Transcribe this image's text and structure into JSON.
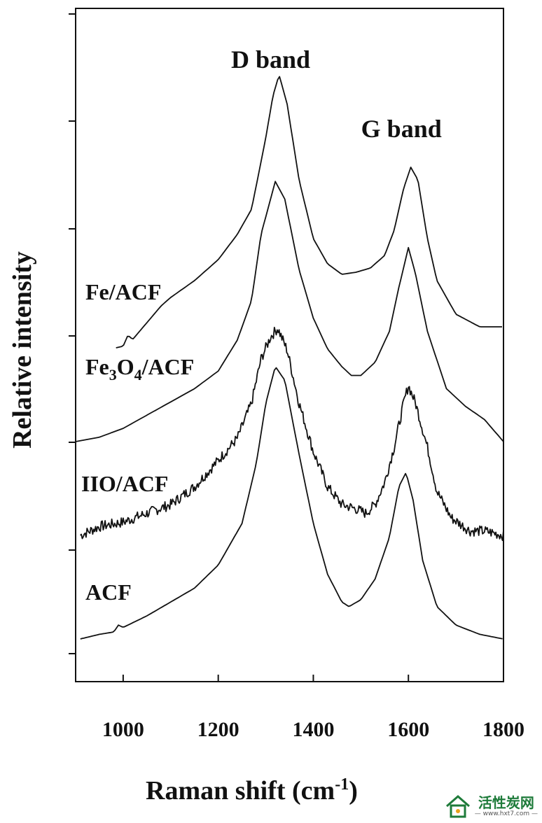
{
  "chart_data": {
    "type": "line",
    "xlabel": "Raman shift (cm",
    "xlabel_sup": "-1",
    "xlabel_close": ")",
    "ylabel": "Relative intensity",
    "xlim": [
      900,
      1800
    ],
    "xticks": [
      1000,
      1200,
      1400,
      1600,
      1800
    ],
    "xtick_labels": [
      "1000",
      "1200",
      "1400",
      "1600",
      "1800"
    ],
    "ylim": [
      0,
      1
    ],
    "yticks_labeled": false,
    "grid": false,
    "annotations": [
      {
        "text": "D band",
        "x": 1325
      },
      {
        "text": "G band",
        "x": 1600
      }
    ],
    "series": [
      {
        "name": "Fe/ACF",
        "label_parts": [
          "Fe/ACF"
        ],
        "noise": 0,
        "points": [
          [
            985,
            0.0
          ],
          [
            1000,
            0.004
          ],
          [
            1010,
            0.03
          ],
          [
            1020,
            0.02
          ],
          [
            1050,
            0.06
          ],
          [
            1080,
            0.1
          ],
          [
            1100,
            0.12
          ],
          [
            1150,
            0.16
          ],
          [
            1200,
            0.21
          ],
          [
            1240,
            0.27
          ],
          [
            1270,
            0.33
          ],
          [
            1300,
            0.5
          ],
          [
            1315,
            0.6
          ],
          [
            1328,
            0.65
          ],
          [
            1345,
            0.58
          ],
          [
            1370,
            0.4
          ],
          [
            1400,
            0.26
          ],
          [
            1430,
            0.2
          ],
          [
            1460,
            0.175
          ],
          [
            1490,
            0.18
          ],
          [
            1520,
            0.19
          ],
          [
            1550,
            0.22
          ],
          [
            1570,
            0.28
          ],
          [
            1590,
            0.38
          ],
          [
            1605,
            0.43
          ],
          [
            1620,
            0.4
          ],
          [
            1640,
            0.26
          ],
          [
            1660,
            0.16
          ],
          [
            1700,
            0.08
          ],
          [
            1750,
            0.05
          ],
          [
            1800,
            0.05
          ]
        ]
      },
      {
        "name": "Fe3O4/ACF",
        "label_parts": [
          "Fe",
          "3",
          "O",
          "4",
          "/ACF"
        ],
        "noise": 0,
        "points": [
          [
            900,
            0.0
          ],
          [
            950,
            0.01
          ],
          [
            1000,
            0.03
          ],
          [
            1050,
            0.06
          ],
          [
            1100,
            0.09
          ],
          [
            1150,
            0.12
          ],
          [
            1200,
            0.16
          ],
          [
            1240,
            0.23
          ],
          [
            1270,
            0.32
          ],
          [
            1290,
            0.47
          ],
          [
            1305,
            0.53
          ],
          [
            1320,
            0.59
          ],
          [
            1340,
            0.55
          ],
          [
            1370,
            0.39
          ],
          [
            1400,
            0.28
          ],
          [
            1430,
            0.21
          ],
          [
            1460,
            0.17
          ],
          [
            1480,
            0.15
          ],
          [
            1500,
            0.15
          ],
          [
            1530,
            0.18
          ],
          [
            1560,
            0.25
          ],
          [
            1580,
            0.35
          ],
          [
            1600,
            0.44
          ],
          [
            1615,
            0.38
          ],
          [
            1640,
            0.25
          ],
          [
            1680,
            0.12
          ],
          [
            1720,
            0.08
          ],
          [
            1760,
            0.05
          ],
          [
            1800,
            0.0
          ]
        ]
      },
      {
        "name": "IIO/ACF",
        "label_parts": [
          "IIO/ACF"
        ],
        "noise": 0.012,
        "points": [
          [
            910,
            0.0
          ],
          [
            950,
            0.02
          ],
          [
            1000,
            0.03
          ],
          [
            1050,
            0.05
          ],
          [
            1100,
            0.07
          ],
          [
            1150,
            0.11
          ],
          [
            1200,
            0.17
          ],
          [
            1240,
            0.22
          ],
          [
            1270,
            0.3
          ],
          [
            1290,
            0.4
          ],
          [
            1310,
            0.45
          ],
          [
            1325,
            0.47
          ],
          [
            1345,
            0.42
          ],
          [
            1370,
            0.3
          ],
          [
            1400,
            0.19
          ],
          [
            1430,
            0.11
          ],
          [
            1460,
            0.07
          ],
          [
            1490,
            0.06
          ],
          [
            1510,
            0.05
          ],
          [
            1530,
            0.07
          ],
          [
            1550,
            0.12
          ],
          [
            1570,
            0.2
          ],
          [
            1590,
            0.3
          ],
          [
            1600,
            0.34
          ],
          [
            1615,
            0.3
          ],
          [
            1640,
            0.2
          ],
          [
            1660,
            0.1
          ],
          [
            1690,
            0.04
          ],
          [
            1730,
            0.01
          ],
          [
            1760,
            0.01
          ],
          [
            1800,
            0.0
          ]
        ]
      },
      {
        "name": "ACF",
        "label_parts": [
          "ACF"
        ],
        "noise": 0,
        "points": [
          [
            910,
            0.0
          ],
          [
            950,
            0.01
          ],
          [
            980,
            0.015
          ],
          [
            990,
            0.03
          ],
          [
            1000,
            0.025
          ],
          [
            1050,
            0.05
          ],
          [
            1100,
            0.08
          ],
          [
            1150,
            0.11
          ],
          [
            1200,
            0.16
          ],
          [
            1250,
            0.25
          ],
          [
            1280,
            0.38
          ],
          [
            1300,
            0.51
          ],
          [
            1320,
            0.59
          ],
          [
            1340,
            0.56
          ],
          [
            1370,
            0.4
          ],
          [
            1400,
            0.25
          ],
          [
            1430,
            0.14
          ],
          [
            1460,
            0.08
          ],
          [
            1475,
            0.07
          ],
          [
            1500,
            0.085
          ],
          [
            1530,
            0.13
          ],
          [
            1560,
            0.22
          ],
          [
            1580,
            0.33
          ],
          [
            1595,
            0.36
          ],
          [
            1610,
            0.3
          ],
          [
            1630,
            0.17
          ],
          [
            1660,
            0.07
          ],
          [
            1700,
            0.03
          ],
          [
            1750,
            0.01
          ],
          [
            1800,
            0.0
          ]
        ]
      }
    ]
  },
  "watermark": {
    "name": "活性炭网",
    "url": "— www.hxt7.com —"
  }
}
